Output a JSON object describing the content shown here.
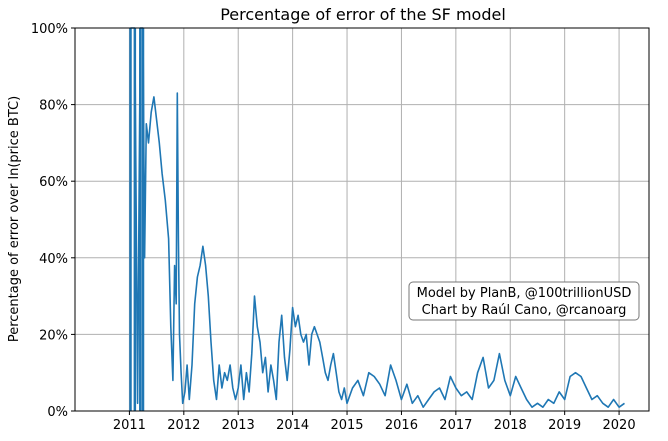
{
  "chart_data": {
    "type": "line",
    "title": "Percentage of error of the SF model",
    "xlabel": "",
    "ylabel": "Percentage of error over ln(price BTC)",
    "x_ticks": [
      "2011",
      "2012",
      "2013",
      "2014",
      "2015",
      "2016",
      "2017",
      "2018",
      "2019",
      "2020"
    ],
    "y_ticks": [
      "0%",
      "20%",
      "40%",
      "60%",
      "80%",
      "100%"
    ],
    "xlim": [
      2010.0,
      2020.55
    ],
    "ylim": [
      0,
      100
    ],
    "grid": true,
    "line_color": "#1f77b4",
    "annotation": {
      "line1": "Model by PlanB, @100trillionUSD",
      "line2": "Chart by Raúl Cano, @rcanoarg",
      "placement": "right-center"
    },
    "series": [
      {
        "x": [
          2011.02,
          2011.1,
          2011.15,
          2011.2,
          2011.25,
          2011.28,
          2011.31,
          2011.35,
          2011.4,
          2011.45,
          2011.5,
          2011.55,
          2011.6,
          2011.66,
          2011.72,
          2011.76,
          2011.8,
          2011.83,
          2011.86,
          2011.88,
          2011.9,
          2011.92,
          2011.95,
          2011.98,
          2012.02,
          2012.06,
          2012.1,
          2012.15,
          2012.2,
          2012.25,
          2012.3,
          2012.35,
          2012.4,
          2012.45,
          2012.5,
          2012.55,
          2012.6,
          2012.65,
          2012.7,
          2012.75,
          2012.8,
          2012.85,
          2012.9,
          2012.95,
          2013.0,
          2013.05,
          2013.1,
          2013.15,
          2013.2,
          2013.25,
          2013.3,
          2013.35,
          2013.4,
          2013.45,
          2013.5,
          2013.55,
          2013.6,
          2013.65,
          2013.7,
          2013.75,
          2013.8,
          2013.85,
          2013.9,
          2013.95,
          2014.0,
          2014.05,
          2014.1,
          2014.15,
          2014.2,
          2014.25,
          2014.3,
          2014.35,
          2014.4,
          2014.45,
          2014.5,
          2014.55,
          2014.6,
          2014.65,
          2014.7,
          2014.75,
          2014.8,
          2014.85,
          2014.9,
          2014.95,
          2015.0,
          2015.1,
          2015.2,
          2015.3,
          2015.4,
          2015.5,
          2015.6,
          2015.7,
          2015.8,
          2015.9,
          2016.0,
          2016.1,
          2016.2,
          2016.3,
          2016.4,
          2016.5,
          2016.6,
          2016.7,
          2016.8,
          2016.9,
          2017.0,
          2017.1,
          2017.2,
          2017.3,
          2017.4,
          2017.5,
          2017.6,
          2017.7,
          2017.8,
          2017.9,
          2018.0,
          2018.1,
          2018.2,
          2018.3,
          2018.4,
          2018.5,
          2018.6,
          2018.7,
          2018.8,
          2018.9,
          2019.0,
          2019.1,
          2019.2,
          2019.3,
          2019.4,
          2019.5,
          2019.6,
          2019.7,
          2019.8,
          2019.9,
          2020.0,
          2020.1
        ],
        "y": [
          100,
          100,
          2,
          100,
          100,
          40,
          75,
          70,
          78,
          82,
          76,
          70,
          62,
          55,
          45,
          22,
          8,
          38,
          28,
          83,
          45,
          20,
          10,
          2,
          5,
          12,
          3,
          12,
          28,
          35,
          38,
          43,
          38,
          30,
          18,
          8,
          3,
          12,
          6,
          10,
          8,
          12,
          6,
          3,
          6,
          12,
          3,
          10,
          5,
          15,
          30,
          22,
          18,
          10,
          14,
          5,
          12,
          8,
          3,
          18,
          25,
          14,
          8,
          16,
          27,
          22,
          25,
          20,
          18,
          20,
          12,
          20,
          22,
          20,
          18,
          14,
          10,
          8,
          12,
          15,
          10,
          5,
          3,
          6,
          2,
          6,
          8,
          4,
          10,
          9,
          7,
          4,
          12,
          8,
          3,
          7,
          2,
          4,
          1,
          3,
          5,
          6,
          3,
          9,
          6,
          4,
          5,
          3,
          10,
          14,
          6,
          8,
          15,
          8,
          4,
          9,
          6,
          3,
          1,
          2,
          1,
          3,
          2,
          5,
          3,
          9,
          10,
          9,
          6,
          3,
          4,
          2,
          1,
          3,
          1,
          2
        ]
      }
    ]
  }
}
